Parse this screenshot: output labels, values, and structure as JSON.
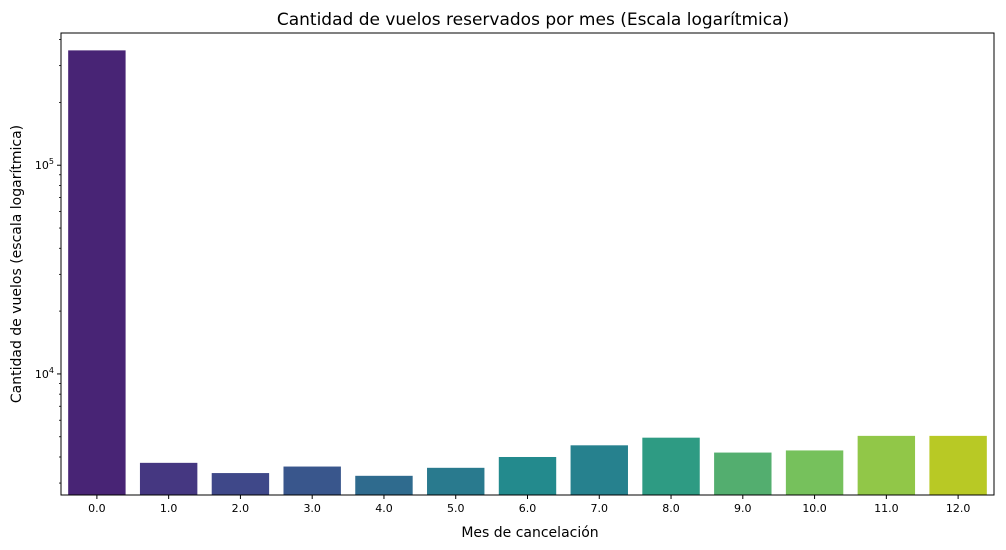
{
  "chart_data": {
    "type": "bar",
    "title": "Cantidad de vuelos reservados por mes (Escala logarítmica)",
    "xlabel": "Mes de cancelación",
    "ylabel": "Cantidad de vuelos (escala logarítmica)",
    "y_scale": "log",
    "ylim": [
      2630,
      430000
    ],
    "y_major_ticks": [
      {
        "value": 10000,
        "base": "10",
        "exp": "4"
      },
      {
        "value": 100000,
        "base": "10",
        "exp": "5"
      }
    ],
    "grid": false,
    "categories": [
      "0.0",
      "1.0",
      "2.0",
      "3.0",
      "4.0",
      "5.0",
      "6.0",
      "7.0",
      "8.0",
      "9.0",
      "10.0",
      "11.0",
      "12.0"
    ],
    "values": [
      355000,
      3750,
      3350,
      3600,
      3250,
      3550,
      4000,
      4550,
      4950,
      4200,
      4300,
      5050,
      5050
    ],
    "colors": [
      "#482475",
      "#453781",
      "#3f4889",
      "#39568c",
      "#2f6b8e",
      "#297a8e",
      "#238a8d",
      "#26818e",
      "#2e9b83",
      "#53ae6f",
      "#76c15c",
      "#91c748",
      "#b8c925"
    ]
  }
}
